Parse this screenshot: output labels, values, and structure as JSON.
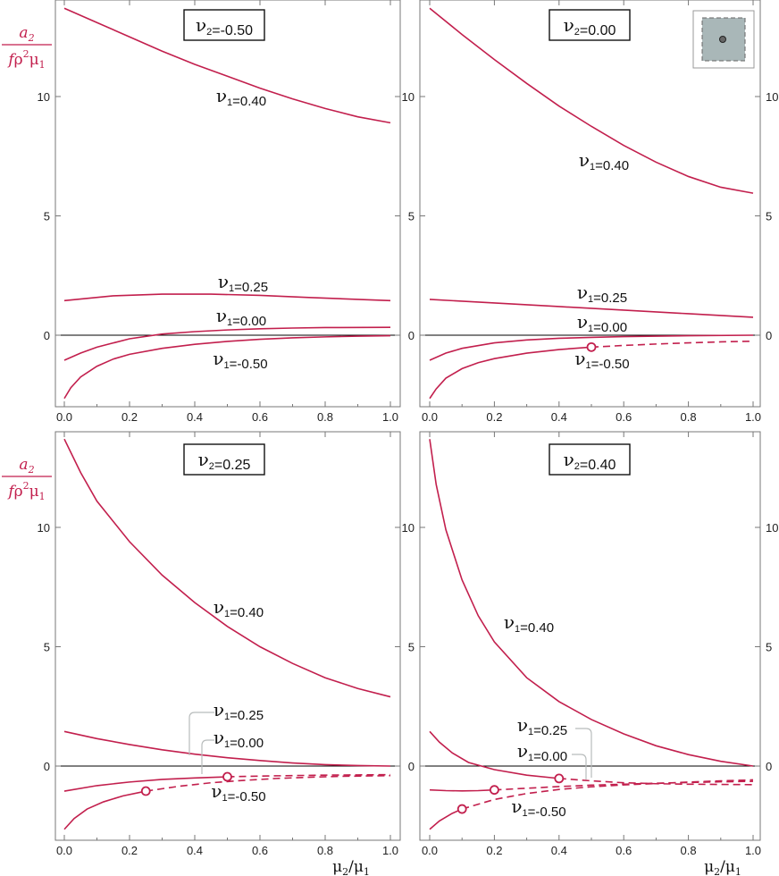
{
  "chart_data": [
    {
      "type": "line",
      "title": "ν2=-0.50",
      "xlim": [
        0,
        1
      ],
      "ylim": [
        -3,
        14
      ],
      "x_ticks": [
        "0.0",
        "0.2",
        "0.4",
        "0.6",
        "0.8",
        "1.0"
      ],
      "y_ticks": [
        "0",
        "5",
        "10"
      ],
      "ylabel": {
        "num": "a2",
        "den": "fρ2μ1"
      },
      "xlabel": "",
      "series": [
        {
          "name": "ν1=0.40",
          "points": [
            [
              0,
              13.7
            ],
            [
              0.1,
              13.1
            ],
            [
              0.2,
              12.5
            ],
            [
              0.3,
              11.9
            ],
            [
              0.4,
              11.35
            ],
            [
              0.5,
              10.85
            ],
            [
              0.6,
              10.35
            ],
            [
              0.7,
              9.9
            ],
            [
              0.8,
              9.5
            ],
            [
              0.9,
              9.15
            ],
            [
              1.0,
              8.9
            ]
          ]
        },
        {
          "name": "ν1=0.25",
          "points": [
            [
              0,
              1.45
            ],
            [
              0.15,
              1.65
            ],
            [
              0.3,
              1.72
            ],
            [
              0.45,
              1.72
            ],
            [
              0.6,
              1.67
            ],
            [
              0.75,
              1.58
            ],
            [
              0.9,
              1.5
            ],
            [
              1.0,
              1.45
            ]
          ]
        },
        {
          "name": "ν1=0.00",
          "points": [
            [
              0,
              -1.05
            ],
            [
              0.05,
              -0.75
            ],
            [
              0.1,
              -0.5
            ],
            [
              0.2,
              -0.15
            ],
            [
              0.3,
              0.05
            ],
            [
              0.4,
              0.15
            ],
            [
              0.5,
              0.22
            ],
            [
              0.6,
              0.27
            ],
            [
              0.7,
              0.3
            ],
            [
              0.8,
              0.32
            ],
            [
              1.0,
              0.33
            ]
          ]
        },
        {
          "name": "ν1=-0.50",
          "points": [
            [
              0,
              -2.65
            ],
            [
              0.02,
              -2.2
            ],
            [
              0.05,
              -1.75
            ],
            [
              0.1,
              -1.3
            ],
            [
              0.15,
              -1.0
            ],
            [
              0.2,
              -0.8
            ],
            [
              0.3,
              -0.55
            ],
            [
              0.4,
              -0.38
            ],
            [
              0.5,
              -0.26
            ],
            [
              0.6,
              -0.17
            ],
            [
              0.7,
              -0.11
            ],
            [
              0.8,
              -0.07
            ],
            [
              0.9,
              -0.04
            ],
            [
              1.0,
              -0.02
            ]
          ]
        }
      ],
      "labels": [
        "ν1=0.40",
        "ν1=0.25",
        "ν1=0.00",
        "ν1=-0.50"
      ]
    },
    {
      "type": "line",
      "title": "ν2=0.00",
      "xlim": [
        0,
        1
      ],
      "ylim": [
        -3,
        14
      ],
      "x_ticks": [
        "0.0",
        "0.2",
        "0.4",
        "0.6",
        "0.8",
        "1.0"
      ],
      "y_ticks": [
        "0",
        "5",
        "10"
      ],
      "xlabel": "",
      "series": [
        {
          "name": "ν1=0.40",
          "points": [
            [
              0,
              13.7
            ],
            [
              0.1,
              12.6
            ],
            [
              0.2,
              11.55
            ],
            [
              0.3,
              10.55
            ],
            [
              0.4,
              9.6
            ],
            [
              0.5,
              8.75
            ],
            [
              0.6,
              7.95
            ],
            [
              0.7,
              7.25
            ],
            [
              0.8,
              6.65
            ],
            [
              0.9,
              6.2
            ],
            [
              1.0,
              5.95
            ]
          ]
        },
        {
          "name": "ν1=0.25",
          "points": [
            [
              0,
              1.5
            ],
            [
              0.2,
              1.35
            ],
            [
              0.4,
              1.2
            ],
            [
              0.6,
              1.05
            ],
            [
              0.8,
              0.9
            ],
            [
              1.0,
              0.75
            ]
          ]
        },
        {
          "name": "ν1=0.00",
          "points": [
            [
              0,
              -1.05
            ],
            [
              0.05,
              -0.75
            ],
            [
              0.1,
              -0.55
            ],
            [
              0.2,
              -0.32
            ],
            [
              0.3,
              -0.2
            ],
            [
              0.4,
              -0.13
            ],
            [
              0.5,
              -0.09
            ],
            [
              0.6,
              -0.06
            ],
            [
              0.7,
              -0.04
            ],
            [
              0.8,
              -0.02
            ],
            [
              1.0,
              0.0
            ]
          ]
        },
        {
          "name": "ν1=-0.50",
          "points": [
            [
              0,
              -2.65
            ],
            [
              0.02,
              -2.25
            ],
            [
              0.05,
              -1.8
            ],
            [
              0.1,
              -1.4
            ],
            [
              0.15,
              -1.15
            ],
            [
              0.2,
              -0.98
            ],
            [
              0.3,
              -0.75
            ],
            [
              0.4,
              -0.6
            ],
            [
              0.5,
              -0.5
            ]
          ],
          "dashed_from": [
            [
              0.5,
              -0.5
            ],
            [
              0.6,
              -0.43
            ],
            [
              0.7,
              -0.37
            ],
            [
              0.8,
              -0.32
            ],
            [
              0.9,
              -0.28
            ],
            [
              1.0,
              -0.25
            ]
          ],
          "marker": [
            0.5,
            -0.5
          ]
        }
      ],
      "labels": [
        "ν1=0.40",
        "ν1=0.25",
        "ν1=0.00",
        "ν1=-0.50"
      ]
    },
    {
      "type": "line",
      "title": "ν2=0.25",
      "xlim": [
        0,
        1
      ],
      "ylim": [
        -3,
        14
      ],
      "x_ticks": [
        "0.0",
        "0.2",
        "0.4",
        "0.6",
        "0.8",
        "1.0"
      ],
      "y_ticks": [
        "0",
        "5",
        "10"
      ],
      "ylabel": {
        "num": "a2",
        "den": "fρ2μ1"
      },
      "xlabel": "μ2/μ1",
      "series": [
        {
          "name": "ν1=0.40",
          "points": [
            [
              0,
              13.7
            ],
            [
              0.05,
              12.3
            ],
            [
              0.1,
              11.1
            ],
            [
              0.2,
              9.4
            ],
            [
              0.3,
              8.0
            ],
            [
              0.4,
              6.85
            ],
            [
              0.5,
              5.85
            ],
            [
              0.6,
              5.0
            ],
            [
              0.7,
              4.3
            ],
            [
              0.8,
              3.7
            ],
            [
              0.9,
              3.25
            ],
            [
              1.0,
              2.9
            ]
          ]
        },
        {
          "name": "ν1=0.25",
          "points": [
            [
              0,
              1.45
            ],
            [
              0.1,
              1.15
            ],
            [
              0.2,
              0.9
            ],
            [
              0.3,
              0.68
            ],
            [
              0.4,
              0.5
            ],
            [
              0.5,
              0.35
            ],
            [
              0.6,
              0.23
            ],
            [
              0.7,
              0.13
            ],
            [
              0.8,
              0.06
            ],
            [
              0.9,
              0.02
            ],
            [
              1.0,
              0.0
            ]
          ]
        },
        {
          "name": "ν1=0.00",
          "points": [
            [
              0,
              -1.05
            ],
            [
              0.1,
              -0.82
            ],
            [
              0.2,
              -0.67
            ],
            [
              0.3,
              -0.56
            ],
            [
              0.4,
              -0.5
            ],
            [
              0.5,
              -0.45
            ]
          ],
          "dashed_from": [
            [
              0.5,
              -0.45
            ],
            [
              0.6,
              -0.42
            ],
            [
              0.7,
              -0.4
            ],
            [
              0.8,
              -0.38
            ],
            [
              0.9,
              -0.37
            ],
            [
              1.0,
              -0.36
            ]
          ],
          "marker": [
            0.5,
            -0.45
          ]
        },
        {
          "name": "ν1=-0.50",
          "points": [
            [
              0,
              -2.65
            ],
            [
              0.03,
              -2.2
            ],
            [
              0.07,
              -1.8
            ],
            [
              0.12,
              -1.5
            ],
            [
              0.18,
              -1.25
            ],
            [
              0.25,
              -1.05
            ]
          ],
          "dashed_from": [
            [
              0.25,
              -1.05
            ],
            [
              0.35,
              -0.85
            ],
            [
              0.45,
              -0.7
            ],
            [
              0.55,
              -0.6
            ],
            [
              0.65,
              -0.52
            ],
            [
              0.75,
              -0.47
            ],
            [
              0.85,
              -0.43
            ],
            [
              1.0,
              -0.4
            ]
          ],
          "marker": [
            0.25,
            -1.05
          ]
        }
      ],
      "labels": [
        "ν1=0.40",
        "ν1=0.25",
        "ν1=0.00",
        "ν1=-0.50"
      ]
    },
    {
      "type": "line",
      "title": "ν2=0.40",
      "xlim": [
        0,
        1
      ],
      "ylim": [
        -3,
        14
      ],
      "x_ticks": [
        "0.0",
        "0.2",
        "0.4",
        "0.6",
        "0.8",
        "1.0"
      ],
      "y_ticks": [
        "0",
        "5",
        "10"
      ],
      "xlabel": "μ2/μ1",
      "series": [
        {
          "name": "ν1=0.40",
          "points": [
            [
              0,
              13.7
            ],
            [
              0.02,
              11.8
            ],
            [
              0.05,
              9.9
            ],
            [
              0.1,
              7.8
            ],
            [
              0.15,
              6.3
            ],
            [
              0.2,
              5.2
            ],
            [
              0.3,
              3.7
            ],
            [
              0.4,
              2.7
            ],
            [
              0.5,
              1.95
            ],
            [
              0.6,
              1.35
            ],
            [
              0.7,
              0.85
            ],
            [
              0.8,
              0.48
            ],
            [
              0.9,
              0.2
            ],
            [
              1.0,
              0.0
            ]
          ]
        },
        {
          "name": "ν1=0.25",
          "points": [
            [
              0,
              1.45
            ],
            [
              0.03,
              1.0
            ],
            [
              0.07,
              0.55
            ],
            [
              0.12,
              0.15
            ],
            [
              0.2,
              -0.15
            ],
            [
              0.3,
              -0.38
            ],
            [
              0.4,
              -0.52
            ]
          ],
          "dashed_from": [
            [
              0.4,
              -0.52
            ],
            [
              0.5,
              -0.62
            ],
            [
              0.6,
              -0.7
            ],
            [
              0.7,
              -0.74
            ],
            [
              0.8,
              -0.76
            ],
            [
              0.9,
              -0.77
            ],
            [
              1.0,
              -0.78
            ]
          ],
          "marker": [
            0.4,
            -0.52
          ]
        },
        {
          "name": "ν1=0.00",
          "points": [
            [
              0,
              -1.0
            ],
            [
              0.05,
              -1.03
            ],
            [
              0.1,
              -1.04
            ],
            [
              0.15,
              -1.03
            ],
            [
              0.2,
              -1.0
            ]
          ],
          "dashed_from": [
            [
              0.2,
              -1.0
            ],
            [
              0.3,
              -0.93
            ],
            [
              0.4,
              -0.86
            ],
            [
              0.5,
              -0.8
            ],
            [
              0.6,
              -0.76
            ],
            [
              0.7,
              -0.72
            ],
            [
              0.8,
              -0.69
            ],
            [
              0.9,
              -0.66
            ],
            [
              1.0,
              -0.64
            ]
          ],
          "marker": [
            0.2,
            -1.0
          ]
        },
        {
          "name": "ν1=-0.50",
          "points": [
            [
              0,
              -2.65
            ],
            [
              0.03,
              -2.3
            ],
            [
              0.07,
              -1.98
            ],
            [
              0.1,
              -1.8
            ]
          ],
          "dashed_from": [
            [
              0.1,
              -1.8
            ],
            [
              0.2,
              -1.4
            ],
            [
              0.3,
              -1.15
            ],
            [
              0.4,
              -0.98
            ],
            [
              0.5,
              -0.87
            ],
            [
              0.6,
              -0.79
            ],
            [
              0.7,
              -0.73
            ],
            [
              0.8,
              -0.67
            ],
            [
              0.9,
              -0.62
            ],
            [
              1.0,
              -0.58
            ]
          ],
          "marker": [
            0.1,
            -1.8
          ]
        }
      ],
      "labels": [
        "ν1=0.25",
        "ν1=0.00",
        "ν1=-0.50",
        "ν1=0.40"
      ]
    }
  ],
  "colors": {
    "curve": "#c21f4d",
    "axis": "#000000",
    "frame": "#777777",
    "leader": "#b8bcbc",
    "inset_fill": "#a9b7b8"
  },
  "icons": {
    "inset": "square-with-dot-icon"
  }
}
